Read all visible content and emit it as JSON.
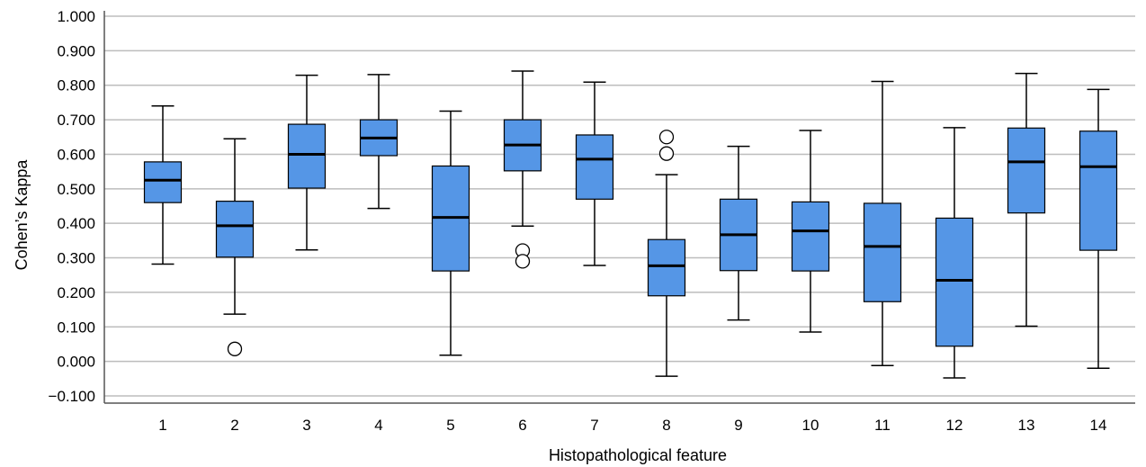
{
  "chart_data": {
    "type": "boxplot",
    "xlabel": "Histopathological feature",
    "ylabel": "Cohen’s Kappa",
    "ylim": [
      -0.1,
      1.0
    ],
    "yticks": [
      "−0.100",
      "0.000",
      "0.100",
      "0.200",
      "0.300",
      "0.400",
      "0.500",
      "0.600",
      "0.700",
      "0.800",
      "0.900",
      "1.000"
    ],
    "grid": true,
    "box_color": "#5596e6",
    "categories": [
      "1",
      "2",
      "3",
      "4",
      "5",
      "6",
      "7",
      "8",
      "9",
      "10",
      "11",
      "12",
      "13",
      "14"
    ],
    "boxes": [
      {
        "category": "1",
        "min": 0.282,
        "q1": 0.46,
        "median": 0.525,
        "q3": 0.578,
        "max": 0.74,
        "outliers": []
      },
      {
        "category": "2",
        "min": 0.137,
        "q1": 0.302,
        "median": 0.393,
        "q3": 0.464,
        "max": 0.645,
        "outliers": [
          0.036
        ]
      },
      {
        "category": "3",
        "min": 0.323,
        "q1": 0.502,
        "median": 0.6,
        "q3": 0.687,
        "max": 0.829,
        "outliers": []
      },
      {
        "category": "4",
        "min": 0.443,
        "q1": 0.596,
        "median": 0.647,
        "q3": 0.7,
        "max": 0.831,
        "outliers": []
      },
      {
        "category": "5",
        "min": 0.018,
        "q1": 0.262,
        "median": 0.417,
        "q3": 0.566,
        "max": 0.725,
        "outliers": []
      },
      {
        "category": "6",
        "min": 0.392,
        "q1": 0.552,
        "median": 0.627,
        "q3": 0.7,
        "max": 0.841,
        "outliers": [
          0.321,
          0.29
        ]
      },
      {
        "category": "7",
        "min": 0.278,
        "q1": 0.47,
        "median": 0.586,
        "q3": 0.656,
        "max": 0.809,
        "outliers": []
      },
      {
        "category": "8",
        "min": -0.043,
        "q1": 0.19,
        "median": 0.277,
        "q3": 0.353,
        "max": 0.541,
        "outliers": [
          0.65,
          0.602
        ]
      },
      {
        "category": "9",
        "min": 0.12,
        "q1": 0.263,
        "median": 0.367,
        "q3": 0.47,
        "max": 0.623,
        "outliers": []
      },
      {
        "category": "10",
        "min": 0.085,
        "q1": 0.262,
        "median": 0.378,
        "q3": 0.462,
        "max": 0.669,
        "outliers": []
      },
      {
        "category": "11",
        "min": -0.012,
        "q1": 0.173,
        "median": 0.333,
        "q3": 0.458,
        "max": 0.811,
        "outliers": []
      },
      {
        "category": "12",
        "min": -0.048,
        "q1": 0.044,
        "median": 0.235,
        "q3": 0.415,
        "max": 0.677,
        "outliers": []
      },
      {
        "category": "13",
        "min": 0.102,
        "q1": 0.43,
        "median": 0.578,
        "q3": 0.676,
        "max": 0.834,
        "outliers": []
      },
      {
        "category": "14",
        "min": -0.02,
        "q1": 0.322,
        "median": 0.564,
        "q3": 0.667,
        "max": 0.788,
        "outliers": []
      }
    ]
  }
}
